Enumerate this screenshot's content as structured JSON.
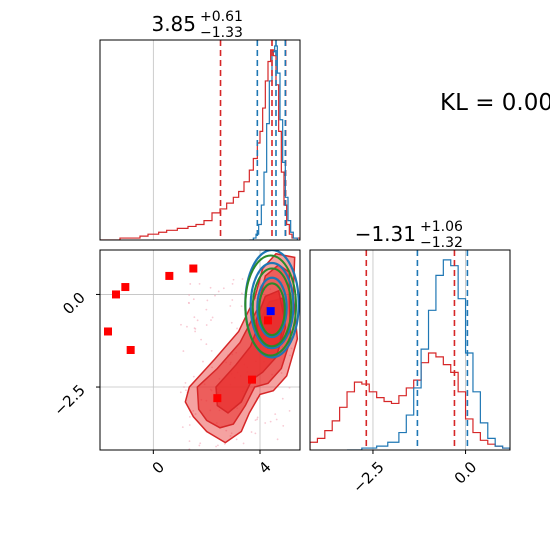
{
  "kl_label": "KL = 0.00",
  "colors": {
    "red": "#d62728",
    "red_fill": "#e8302f",
    "blue": "#1f77b4",
    "green": "#2a8a2a",
    "grid": "#c0c0c0",
    "marker_red": "#ff0000",
    "marker_blue": "#0000ff"
  },
  "chart_data": [
    {
      "type": "histogram",
      "panel": "top-left",
      "title": "3.85",
      "title_sup": "+0.61",
      "title_sub": "−1.33",
      "xlim": [
        -2.0,
        5.5
      ],
      "grid": true,
      "quantile_lines": {
        "red": [
          2.52,
          4.45,
          4.96
        ],
        "blue": [
          3.9,
          4.6,
          4.95
        ]
      },
      "series": [
        {
          "color": "red",
          "x": [
            -2.0,
            -1.25,
            -0.5,
            -0.2,
            0.2,
            0.5,
            0.9,
            1.3,
            1.6,
            1.9,
            2.2,
            2.5,
            2.75,
            3.0,
            3.2,
            3.4,
            3.6,
            3.75,
            3.9,
            4.0,
            4.1,
            4.2,
            4.3,
            4.4,
            4.5,
            4.6,
            4.7,
            4.8,
            4.9,
            5.0,
            5.1,
            5.2,
            5.5
          ],
          "y": [
            0.0,
            0.01,
            0.02,
            0.03,
            0.04,
            0.05,
            0.06,
            0.07,
            0.08,
            0.1,
            0.14,
            0.16,
            0.19,
            0.22,
            0.25,
            0.3,
            0.36,
            0.42,
            0.5,
            0.56,
            0.68,
            0.82,
            0.92,
            0.98,
            0.95,
            0.8,
            0.56,
            0.35,
            0.18,
            0.08,
            0.03,
            0.01,
            0.0
          ]
        },
        {
          "color": "blue",
          "x": [
            3.6,
            3.75,
            3.85,
            3.95,
            4.05,
            4.15,
            4.25,
            4.35,
            4.45,
            4.55,
            4.65,
            4.75,
            4.85,
            4.95,
            5.05,
            5.15,
            5.25,
            5.4
          ],
          "y": [
            0.0,
            0.01,
            0.03,
            0.08,
            0.18,
            0.35,
            0.6,
            0.82,
            0.97,
            1.0,
            0.86,
            0.62,
            0.4,
            0.22,
            0.1,
            0.04,
            0.01,
            0.0
          ]
        }
      ]
    },
    {
      "type": "scatter-contour",
      "panel": "bottom-left",
      "xlim": [
        -2.0,
        5.5
      ],
      "ylim": [
        -4.2,
        1.2
      ],
      "x_ticks": [
        0,
        4
      ],
      "x_tick_labels": [
        "0",
        "4"
      ],
      "y_ticks": [
        0.0,
        -2.5
      ],
      "y_tick_labels": [
        "0.0",
        "−2.5"
      ],
      "grid": true,
      "red_markers": [
        [
          -1.4,
          0.0
        ],
        [
          -1.05,
          0.2
        ],
        [
          -1.7,
          -1.0
        ],
        [
          -0.85,
          -1.5
        ],
        [
          0.6,
          0.5
        ],
        [
          1.5,
          0.7
        ],
        [
          2.4,
          -2.8
        ],
        [
          3.7,
          -2.3
        ],
        [
          4.3,
          -0.7
        ]
      ],
      "blue_marker": [
        4.4,
        -0.45
      ],
      "red_contours": [
        [
          [
            1.35,
            -2.5
          ],
          [
            2.3,
            -1.75
          ],
          [
            3.2,
            -1.0
          ],
          [
            3.8,
            -0.1
          ],
          [
            4.1,
            0.7
          ],
          [
            4.6,
            1.1
          ],
          [
            5.3,
            1.0
          ],
          [
            5.25,
            0.0
          ],
          [
            5.4,
            -1.2
          ],
          [
            5.0,
            -2.2
          ],
          [
            4.5,
            -2.6
          ],
          [
            4.0,
            -2.7
          ],
          [
            3.6,
            -3.2
          ],
          [
            3.3,
            -3.7
          ],
          [
            2.7,
            -4.0
          ],
          [
            2.0,
            -3.7
          ],
          [
            1.5,
            -3.3
          ],
          [
            1.2,
            -2.9
          ]
        ],
        [
          [
            1.65,
            -2.5
          ],
          [
            2.4,
            -2.0
          ],
          [
            3.25,
            -1.3
          ],
          [
            3.9,
            -0.4
          ],
          [
            4.2,
            0.5
          ],
          [
            4.7,
            0.8
          ],
          [
            5.1,
            0.6
          ],
          [
            5.1,
            -0.3
          ],
          [
            5.15,
            -1.2
          ],
          [
            4.8,
            -2.0
          ],
          [
            4.3,
            -2.4
          ],
          [
            3.8,
            -2.5
          ],
          [
            3.45,
            -3.0
          ],
          [
            3.0,
            -3.5
          ],
          [
            2.5,
            -3.6
          ],
          [
            2.0,
            -3.4
          ],
          [
            1.7,
            -3.1
          ]
        ],
        [
          [
            2.35,
            -2.5
          ],
          [
            3.1,
            -1.9
          ],
          [
            3.65,
            -1.4
          ],
          [
            4.0,
            -0.7
          ],
          [
            4.35,
            -0.2
          ],
          [
            4.85,
            -0.1
          ],
          [
            4.95,
            -0.9
          ],
          [
            4.6,
            -1.7
          ],
          [
            4.1,
            -2.1
          ],
          [
            3.7,
            -2.3
          ],
          [
            3.3,
            -2.9
          ],
          [
            2.8,
            -3.2
          ],
          [
            2.4,
            -3.0
          ]
        ],
        [
          [
            3.85,
            -0.7
          ],
          [
            4.2,
            -0.05
          ],
          [
            4.7,
            0.1
          ],
          [
            4.9,
            -0.6
          ],
          [
            4.75,
            -1.3
          ],
          [
            4.3,
            -1.45
          ],
          [
            3.95,
            -1.2
          ]
        ]
      ],
      "blue_contours": [
        {
          "cx": 4.45,
          "cy": -0.25,
          "rx": 1.0,
          "ry": 1.45
        },
        {
          "cx": 4.45,
          "cy": -0.3,
          "rx": 0.8,
          "ry": 1.15
        },
        {
          "cx": 4.45,
          "cy": -0.35,
          "rx": 0.55,
          "ry": 0.8
        }
      ],
      "green_contours": [
        {
          "cx": 4.4,
          "cy": -0.3,
          "rx": 0.95,
          "ry": 1.35
        },
        {
          "cx": 4.45,
          "cy": -0.35,
          "rx": 0.72,
          "ry": 1.05
        },
        {
          "cx": 4.45,
          "cy": -0.4,
          "rx": 0.48,
          "ry": 0.7
        }
      ]
    },
    {
      "type": "histogram",
      "panel": "bottom-right",
      "title": "−1.31",
      "title_sup": "+1.06",
      "title_sub": "−1.32",
      "xlim": [
        -4.2,
        1.2
      ],
      "x_ticks": [
        -2.5,
        0.0
      ],
      "x_tick_labels": [
        "−2.5",
        "0.0"
      ],
      "grid": true,
      "quantile_lines": {
        "red": [
          -2.68,
          -0.3
        ],
        "blue": [
          -1.3,
          0.05
        ]
      },
      "series": [
        {
          "color": "red",
          "x": [
            -4.2,
            -4.0,
            -3.8,
            -3.6,
            -3.4,
            -3.2,
            -3.0,
            -2.8,
            -2.6,
            -2.4,
            -2.2,
            -2.0,
            -1.8,
            -1.6,
            -1.4,
            -1.2,
            -1.0,
            -0.8,
            -0.6,
            -0.4,
            -0.2,
            0.0,
            0.2,
            0.4,
            0.6,
            0.8,
            1.0,
            1.2
          ],
          "y": [
            0.04,
            0.06,
            0.1,
            0.15,
            0.22,
            0.3,
            0.35,
            0.34,
            0.3,
            0.27,
            0.25,
            0.24,
            0.28,
            0.32,
            0.36,
            0.45,
            0.5,
            0.48,
            0.44,
            0.4,
            0.3,
            0.16,
            0.09,
            0.05,
            0.03,
            0.02,
            0.01,
            0.0
          ]
        },
        {
          "color": "blue",
          "x": [
            -3.2,
            -2.8,
            -2.4,
            -2.1,
            -1.8,
            -1.6,
            -1.4,
            -1.2,
            -1.0,
            -0.8,
            -0.6,
            -0.4,
            -0.2,
            0.0,
            0.2,
            0.4,
            0.6,
            0.8,
            1.0,
            1.2
          ],
          "y": [
            0.0,
            0.01,
            0.02,
            0.04,
            0.09,
            0.18,
            0.32,
            0.52,
            0.72,
            0.9,
            0.98,
            0.95,
            0.78,
            0.5,
            0.3,
            0.14,
            0.06,
            0.02,
            0.01,
            0.0
          ]
        }
      ]
    }
  ]
}
